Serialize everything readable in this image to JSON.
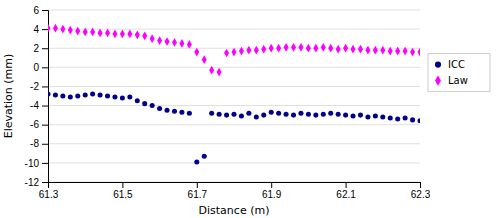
{
  "chart_data": {
    "type": "scatter",
    "xlabel": "Distance (m)",
    "ylabel": "Elevation (mm)",
    "xlim": [
      61.3,
      62.3
    ],
    "ylim": [
      -12,
      6
    ],
    "xticks": [
      61.3,
      61.5,
      61.7,
      61.9,
      62.1,
      62.3
    ],
    "yticks": [
      -12,
      -10,
      -8,
      -6,
      -4,
      -2,
      0,
      2,
      4,
      6
    ],
    "grid": "y",
    "legend": "right",
    "x": [
      61.3,
      61.32,
      61.34,
      61.36,
      61.38,
      61.4,
      61.42,
      61.44,
      61.46,
      61.48,
      61.5,
      61.52,
      61.54,
      61.56,
      61.58,
      61.6,
      61.62,
      61.64,
      61.66,
      61.68,
      61.7,
      61.72,
      61.74,
      61.76,
      61.78,
      61.8,
      61.82,
      61.84,
      61.86,
      61.88,
      61.9,
      61.92,
      61.94,
      61.96,
      61.98,
      62.0,
      62.02,
      62.04,
      62.06,
      62.08,
      62.1,
      62.12,
      62.14,
      62.16,
      62.18,
      62.2,
      62.22,
      62.24,
      62.26,
      62.28,
      62.3
    ],
    "series": [
      {
        "name": "ICC",
        "color": "#00008B",
        "marker": "circle",
        "values": [
          -2.8,
          -2.9,
          -3.0,
          -3.1,
          -3.0,
          -2.9,
          -2.8,
          -2.9,
          -3.0,
          -3.1,
          -3.2,
          -3.1,
          -3.5,
          -3.8,
          -4.0,
          -4.3,
          -4.5,
          -4.6,
          -4.7,
          -4.8,
          -9.9,
          -9.3,
          -4.8,
          -4.9,
          -5.0,
          -4.9,
          -5.1,
          -4.8,
          -5.2,
          -5.0,
          -4.7,
          -4.8,
          -4.9,
          -5.0,
          -4.8,
          -4.9,
          -5.0,
          -4.9,
          -4.8,
          -4.9,
          -5.0,
          -5.1,
          -5.0,
          -5.2,
          -5.1,
          -5.2,
          -5.3,
          -5.4,
          -5.3,
          -5.5,
          -5.6
        ]
      },
      {
        "name": "Law",
        "color": "#FF00FF",
        "marker": "diamond",
        "values": [
          4.1,
          4.1,
          4.0,
          3.9,
          3.8,
          3.7,
          3.7,
          3.6,
          3.6,
          3.5,
          3.5,
          3.5,
          3.4,
          3.3,
          3.0,
          2.8,
          2.7,
          2.6,
          2.5,
          2.4,
          1.6,
          0.8,
          -0.3,
          -0.5,
          1.5,
          1.6,
          1.7,
          1.8,
          1.8,
          1.9,
          2.0,
          2.0,
          2.1,
          2.1,
          2.1,
          2.0,
          2.0,
          2.1,
          2.0,
          1.9,
          2.0,
          1.9,
          1.9,
          1.8,
          1.8,
          1.8,
          1.7,
          1.7,
          1.7,
          1.6,
          1.6
        ]
      }
    ]
  }
}
